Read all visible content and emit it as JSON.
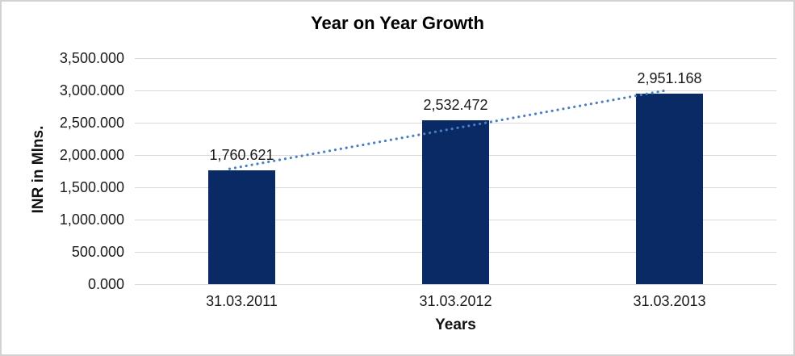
{
  "frame": {
    "background": "#ffffff",
    "border_color": "#d2d2d2"
  },
  "chart_data": {
    "type": "bar",
    "title": "Year on Year Growth",
    "xlabel": "Years",
    "ylabel": "INR in Mlns.",
    "categories": [
      "31.03.2011",
      "31.03.2012",
      "31.03.2013"
    ],
    "series": [
      {
        "name": "INR in Mlns.",
        "values": [
          1760.621,
          2532.472,
          2951.168
        ],
        "data_labels": [
          "1,760.621",
          "2,532.472",
          "2,951.168"
        ],
        "color": "#0a2a66"
      }
    ],
    "ylim": [
      0,
      3500
    ],
    "ytick_step": 500,
    "ytick_labels": [
      "0.000",
      "500.000",
      "1,000.000",
      "1,500.000",
      "2,000.000",
      "2,500.000",
      "3,000.000",
      "3,500.000"
    ],
    "grid": true,
    "gridline_color": "#d9d9d9",
    "legend": "none",
    "trendline": {
      "type": "linear",
      "style": "dotted",
      "color": "#4a7fc1",
      "start_value": 1819.5,
      "end_value": 3010.0
    }
  }
}
